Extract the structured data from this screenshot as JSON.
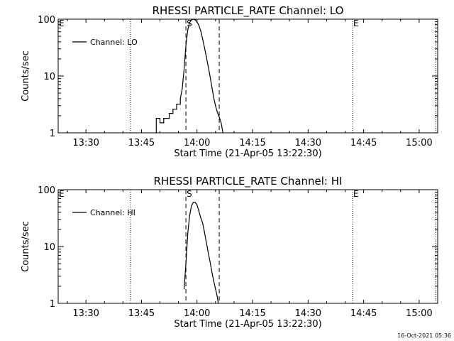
{
  "footer_timestamp": "16-Oct-2021 05:36",
  "chart_data": [
    {
      "type": "line",
      "title": "RHESSI PARTICLE_RATE Channel: LO",
      "xlabel": "Start Time (21-Apr-05 13:22:30)",
      "ylabel": "Counts/sec",
      "y_scale": "log",
      "ylim": [
        1,
        100
      ],
      "xlim": [
        "13:22:30",
        "15:05:00"
      ],
      "x_ticks": [
        "13:30",
        "13:45",
        "14:00",
        "14:15",
        "14:30",
        "14:45",
        "15:00"
      ],
      "y_ticks": [
        "1",
        "10",
        "100"
      ],
      "legend_location": "top-left",
      "series": [
        {
          "name": "Channel: LO",
          "color": "#000000",
          "x": [
            "13:49:00",
            "13:49:00",
            "13:50:00",
            "13:50:00",
            "13:51:00",
            "13:51:00",
            "13:52:30",
            "13:52:30",
            "13:53:30",
            "13:53:30",
            "13:54:30",
            "13:54:30",
            "13:55:30",
            "13:55:30",
            "13:56:00",
            "13:56:30",
            "13:57:00",
            "13:57:30",
            "13:58:00",
            "13:58:30",
            "13:59:00",
            "13:59:30",
            "14:00:00",
            "14:00:30",
            "14:01:00",
            "14:01:30",
            "14:02:00",
            "14:02:30",
            "14:03:00",
            "14:03:30",
            "14:04:00",
            "14:04:30",
            "14:05:00",
            "14:05:30",
            "14:06:00",
            "14:06:30",
            "14:07:00"
          ],
          "y": [
            1.0,
            1.8,
            1.8,
            1.5,
            1.5,
            1.8,
            1.8,
            2.2,
            2.2,
            2.6,
            2.6,
            3.2,
            3.2,
            4.0,
            6.0,
            13,
            35,
            65,
            88,
            97,
            100,
            97,
            90,
            78,
            62,
            45,
            32,
            22,
            15,
            10,
            6.5,
            4.2,
            3.0,
            2.3,
            1.9,
            1.5,
            1.0
          ]
        }
      ],
      "vlines_dashed": [
        "13:57:00",
        "14:06:00"
      ],
      "vlines_dotted": [
        "13:42:00",
        "14:42:00",
        "15:04:30"
      ],
      "markers": [
        {
          "label": "E",
          "x": "13:22:30"
        },
        {
          "label": "S",
          "x": "13:57:00"
        },
        {
          "label": "E",
          "x": "14:42:00"
        }
      ]
    },
    {
      "type": "line",
      "title": "RHESSI PARTICLE_RATE Channel: HI",
      "xlabel": "Start Time (21-Apr-05 13:22:30)",
      "ylabel": "Counts/sec",
      "y_scale": "log",
      "ylim": [
        1,
        100
      ],
      "xlim": [
        "13:22:30",
        "15:05:00"
      ],
      "x_ticks": [
        "13:30",
        "13:45",
        "14:00",
        "14:15",
        "14:30",
        "14:45",
        "15:00"
      ],
      "y_ticks": [
        "1",
        "10",
        "100"
      ],
      "legend_location": "top-left",
      "series": [
        {
          "name": "Channel: HI",
          "color": "#000000",
          "x": [
            "13:56:30",
            "13:57:00",
            "13:57:30",
            "13:58:00",
            "13:58:30",
            "13:59:00",
            "13:59:30",
            "14:00:00",
            "14:00:30",
            "14:01:00",
            "14:01:30",
            "14:02:00",
            "14:02:30",
            "14:03:00",
            "14:03:30",
            "14:04:00",
            "14:04:30",
            "14:05:00",
            "14:05:30",
            "14:05:45"
          ],
          "y": [
            1.8,
            5.0,
            17,
            35,
            52,
            60,
            60,
            54,
            42,
            32,
            26,
            18,
            12,
            8.0,
            5.5,
            3.6,
            2.5,
            1.8,
            1.3,
            1.0
          ]
        }
      ],
      "vlines_dashed": [
        "13:57:00",
        "14:06:00"
      ],
      "vlines_dotted": [
        "13:42:00",
        "14:42:00",
        "15:04:30"
      ],
      "markers": [
        {
          "label": "E",
          "x": "13:22:30"
        },
        {
          "label": "S",
          "x": "13:57:00"
        },
        {
          "label": "E",
          "x": "14:42:00"
        }
      ]
    }
  ]
}
